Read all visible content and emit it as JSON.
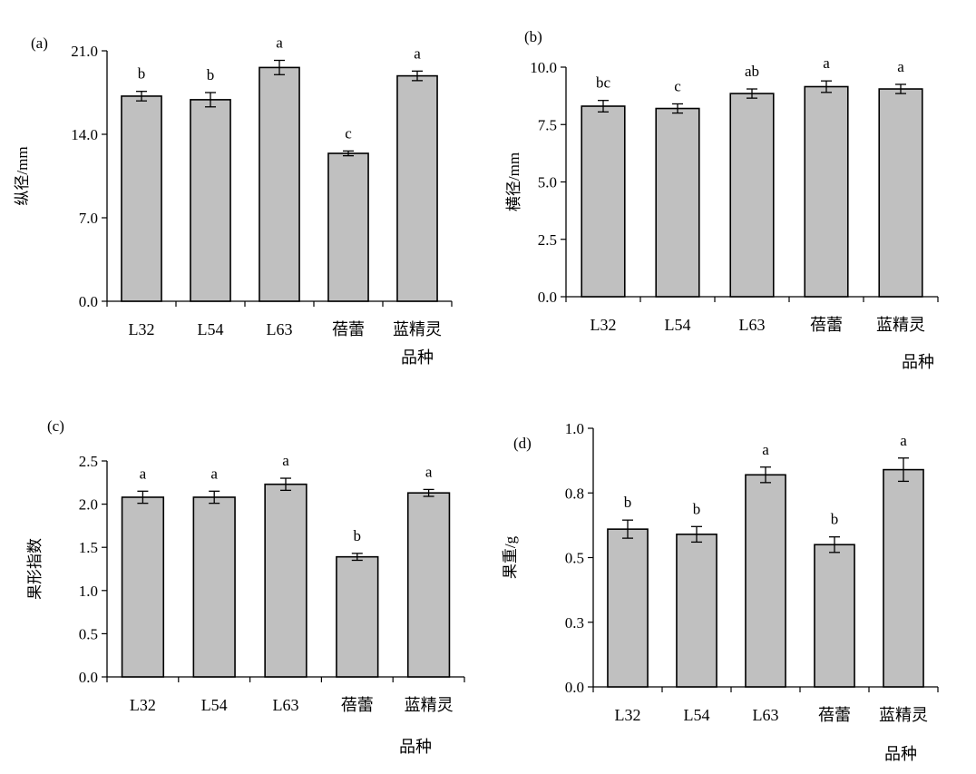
{
  "colors": {
    "bar_fill": "#c0c0c0",
    "bar_stroke": "#000000",
    "axis": "#000000"
  },
  "chart_data": [
    {
      "panel": "(a)",
      "type": "bar",
      "ylabel": "纵径/mm",
      "xlabel": "品种",
      "ylim": [
        0,
        21
      ],
      "yticks": [
        "0.0",
        "7.0",
        "14.0",
        "21.0"
      ],
      "categories": [
        "L32",
        "L54",
        "L63",
        "蓓蕾",
        "蓝精灵"
      ],
      "values": [
        17.2,
        16.9,
        19.6,
        12.4,
        18.9
      ],
      "errors": [
        0.4,
        0.6,
        0.6,
        0.2,
        0.4
      ],
      "letters": [
        "b",
        "b",
        "a",
        "c",
        "a"
      ]
    },
    {
      "panel": "(b)",
      "type": "bar",
      "ylabel": "横径/mm",
      "xlabel": "品种",
      "ylim": [
        0,
        10
      ],
      "yticks": [
        "0.0",
        "2.5",
        "5.0",
        "7.5",
        "10.0"
      ],
      "categories": [
        "L32",
        "L54",
        "L63",
        "蓓蕾",
        "蓝精灵"
      ],
      "values": [
        8.3,
        8.2,
        8.85,
        9.15,
        9.05
      ],
      "errors": [
        0.25,
        0.2,
        0.2,
        0.25,
        0.2
      ],
      "letters": [
        "bc",
        "c",
        "ab",
        "a",
        "a"
      ]
    },
    {
      "panel": "(c)",
      "type": "bar",
      "ylabel": "果形指数",
      "xlabel": "品种",
      "ylim": [
        0,
        2.5
      ],
      "yticks": [
        "0.0",
        "0.5",
        "1.0",
        "1.5",
        "2.0",
        "2.5"
      ],
      "categories": [
        "L32",
        "L54",
        "L63",
        "蓓蕾",
        "蓝精灵"
      ],
      "values": [
        2.08,
        2.08,
        2.23,
        1.39,
        2.13
      ],
      "errors": [
        0.07,
        0.07,
        0.07,
        0.04,
        0.04
      ],
      "letters": [
        "a",
        "a",
        "a",
        "b",
        "a"
      ]
    },
    {
      "panel": "(d)",
      "type": "bar",
      "ylabel": "果重/g",
      "xlabel": "品种",
      "ylim": [
        0,
        1.0
      ],
      "yticks": [
        "0.0",
        "0.3",
        "0.5",
        "0.8",
        "1.0"
      ],
      "categories": [
        "L32",
        "L54",
        "L63",
        "蓓蕾",
        "蓝精灵"
      ],
      "values": [
        0.61,
        0.59,
        0.82,
        0.55,
        0.84
      ],
      "errors": [
        0.035,
        0.03,
        0.03,
        0.03,
        0.045
      ],
      "letters": [
        "b",
        "b",
        "a",
        "b",
        "a"
      ]
    }
  ]
}
